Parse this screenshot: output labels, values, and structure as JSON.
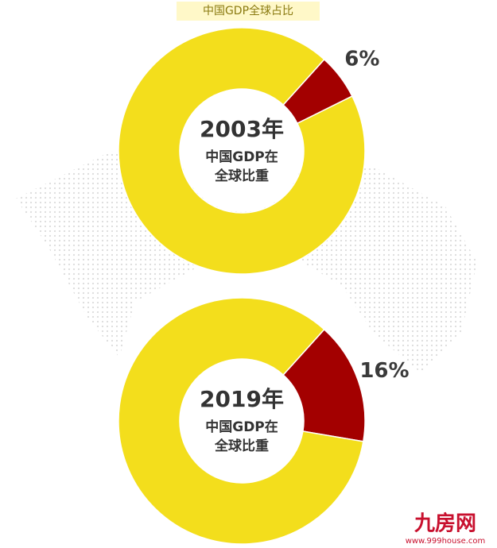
{
  "title": "中国GDP全球占比",
  "watermark": {
    "name": "九房网",
    "url": "www.999house.com"
  },
  "chart_data": [
    {
      "type": "pie",
      "values": [
        6,
        94
      ],
      "value_labels": [
        "6%",
        null
      ],
      "colors": [
        "#a30000",
        "#f3de1c"
      ],
      "center_text": [
        "2003年",
        "中国GDP在",
        "全球比重"
      ]
    },
    {
      "type": "pie",
      "values": [
        16,
        84
      ],
      "value_labels": [
        "16%",
        null
      ],
      "colors": [
        "#a30000",
        "#f3de1c"
      ],
      "center_text": [
        "2019年",
        "中国GDP在",
        "全球比重"
      ]
    }
  ]
}
